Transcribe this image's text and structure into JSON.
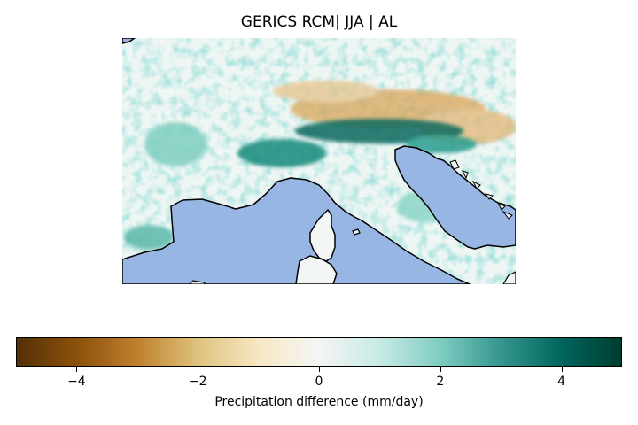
{
  "map": {
    "title": "GERICS RCM| JJA | AL",
    "sea_color": "#98b6e3",
    "coast_color": "#000000"
  },
  "colorbar": {
    "label": "Precipitation difference (mm/day)",
    "vmin": -5,
    "vmax": 5,
    "ticks": [
      {
        "value": -4,
        "label": "−4"
      },
      {
        "value": -2,
        "label": "−2"
      },
      {
        "value": 0,
        "label": "0"
      },
      {
        "value": 2,
        "label": "2"
      },
      {
        "value": 4,
        "label": "4"
      }
    ],
    "colormap": [
      "#543005",
      "#8c510a",
      "#bf812d",
      "#dfc27d",
      "#f6e8c3",
      "#f5f5f5",
      "#c7eae5",
      "#80cdc1",
      "#35978f",
      "#01665e",
      "#003c30"
    ]
  }
}
